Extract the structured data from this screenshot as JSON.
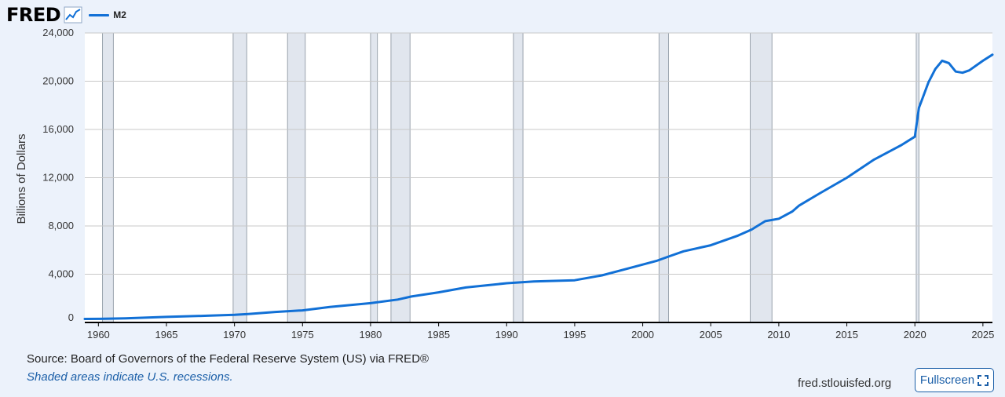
{
  "header": {
    "logo_text": "FRED",
    "logo_icon": "trend-chart-icon",
    "legend_label": "M2"
  },
  "colors": {
    "series": "#1170d6",
    "recession": "#e1e6ee",
    "background": "#ecf2fb",
    "plot": "#ffffff",
    "link": "#1b5fa8"
  },
  "chart_data": {
    "type": "line",
    "ylabel": "Billions of Dollars",
    "ylim": [
      0,
      24000
    ],
    "y_ticks": [
      0,
      4000,
      8000,
      12000,
      16000,
      20000,
      24000
    ],
    "y_tick_labels": [
      "0",
      "4,000",
      "8,000",
      "12,000",
      "16,000",
      "20,000",
      "24,000"
    ],
    "xlim": [
      1959.0,
      2025.7
    ],
    "x_ticks": [
      1960,
      1965,
      1970,
      1975,
      1980,
      1985,
      1990,
      1995,
      2000,
      2005,
      2010,
      2015,
      2020,
      2025
    ],
    "x_tick_labels": [
      "1960",
      "1965",
      "1970",
      "1975",
      "1980",
      "1985",
      "1990",
      "1995",
      "2000",
      "2005",
      "2010",
      "2015",
      "2020",
      "2025"
    ],
    "grid": "horizontal",
    "recessions": [
      [
        1960.3,
        1961.1
      ],
      [
        1969.9,
        1970.9
      ],
      [
        1973.9,
        1975.2
      ],
      [
        1980.0,
        1980.5
      ],
      [
        1981.5,
        1982.9
      ],
      [
        1990.5,
        1991.2
      ],
      [
        2001.2,
        2001.9
      ],
      [
        2007.9,
        2009.5
      ],
      [
        2020.1,
        2020.3
      ]
    ],
    "series": [
      {
        "name": "M2",
        "x": [
          1959.0,
          1960.0,
          1962.0,
          1965.0,
          1968.0,
          1970.0,
          1971.0,
          1973.0,
          1975.0,
          1977.0,
          1980.0,
          1982.0,
          1983.0,
          1985.0,
          1987.0,
          1990.0,
          1992.0,
          1995.0,
          1997.0,
          1999.0,
          2001.0,
          2002.0,
          2003.0,
          2005.0,
          2007.0,
          2008.0,
          2009.0,
          2010.0,
          2011.0,
          2011.5,
          2013.0,
          2015.0,
          2017.0,
          2019.0,
          2020.0,
          2020.3,
          2020.5,
          2021.0,
          2021.5,
          2022.0,
          2022.5,
          2023.0,
          2023.5,
          2024.0,
          2025.0,
          2025.7
        ],
        "y": [
          290,
          300,
          340,
          460,
          560,
          630,
          700,
          870,
          1000,
          1280,
          1600,
          1900,
          2150,
          2500,
          2900,
          3250,
          3400,
          3500,
          3900,
          4500,
          5100,
          5500,
          5900,
          6400,
          7200,
          7700,
          8400,
          8600,
          9200,
          9700,
          10700,
          12000,
          13500,
          14700,
          15400,
          17800,
          18400,
          19900,
          21000,
          21700,
          21500,
          20800,
          20700,
          20900,
          21700,
          22200
        ]
      }
    ]
  },
  "footer": {
    "source": "Source: Board of Governors of the Federal Reserve System (US) via FRED®",
    "note": "Shaded areas indicate U.S. recessions.",
    "site": "fred.stlouisfed.org",
    "fullscreen_label": "Fullscreen",
    "fullscreen_icon": "expand-icon"
  }
}
